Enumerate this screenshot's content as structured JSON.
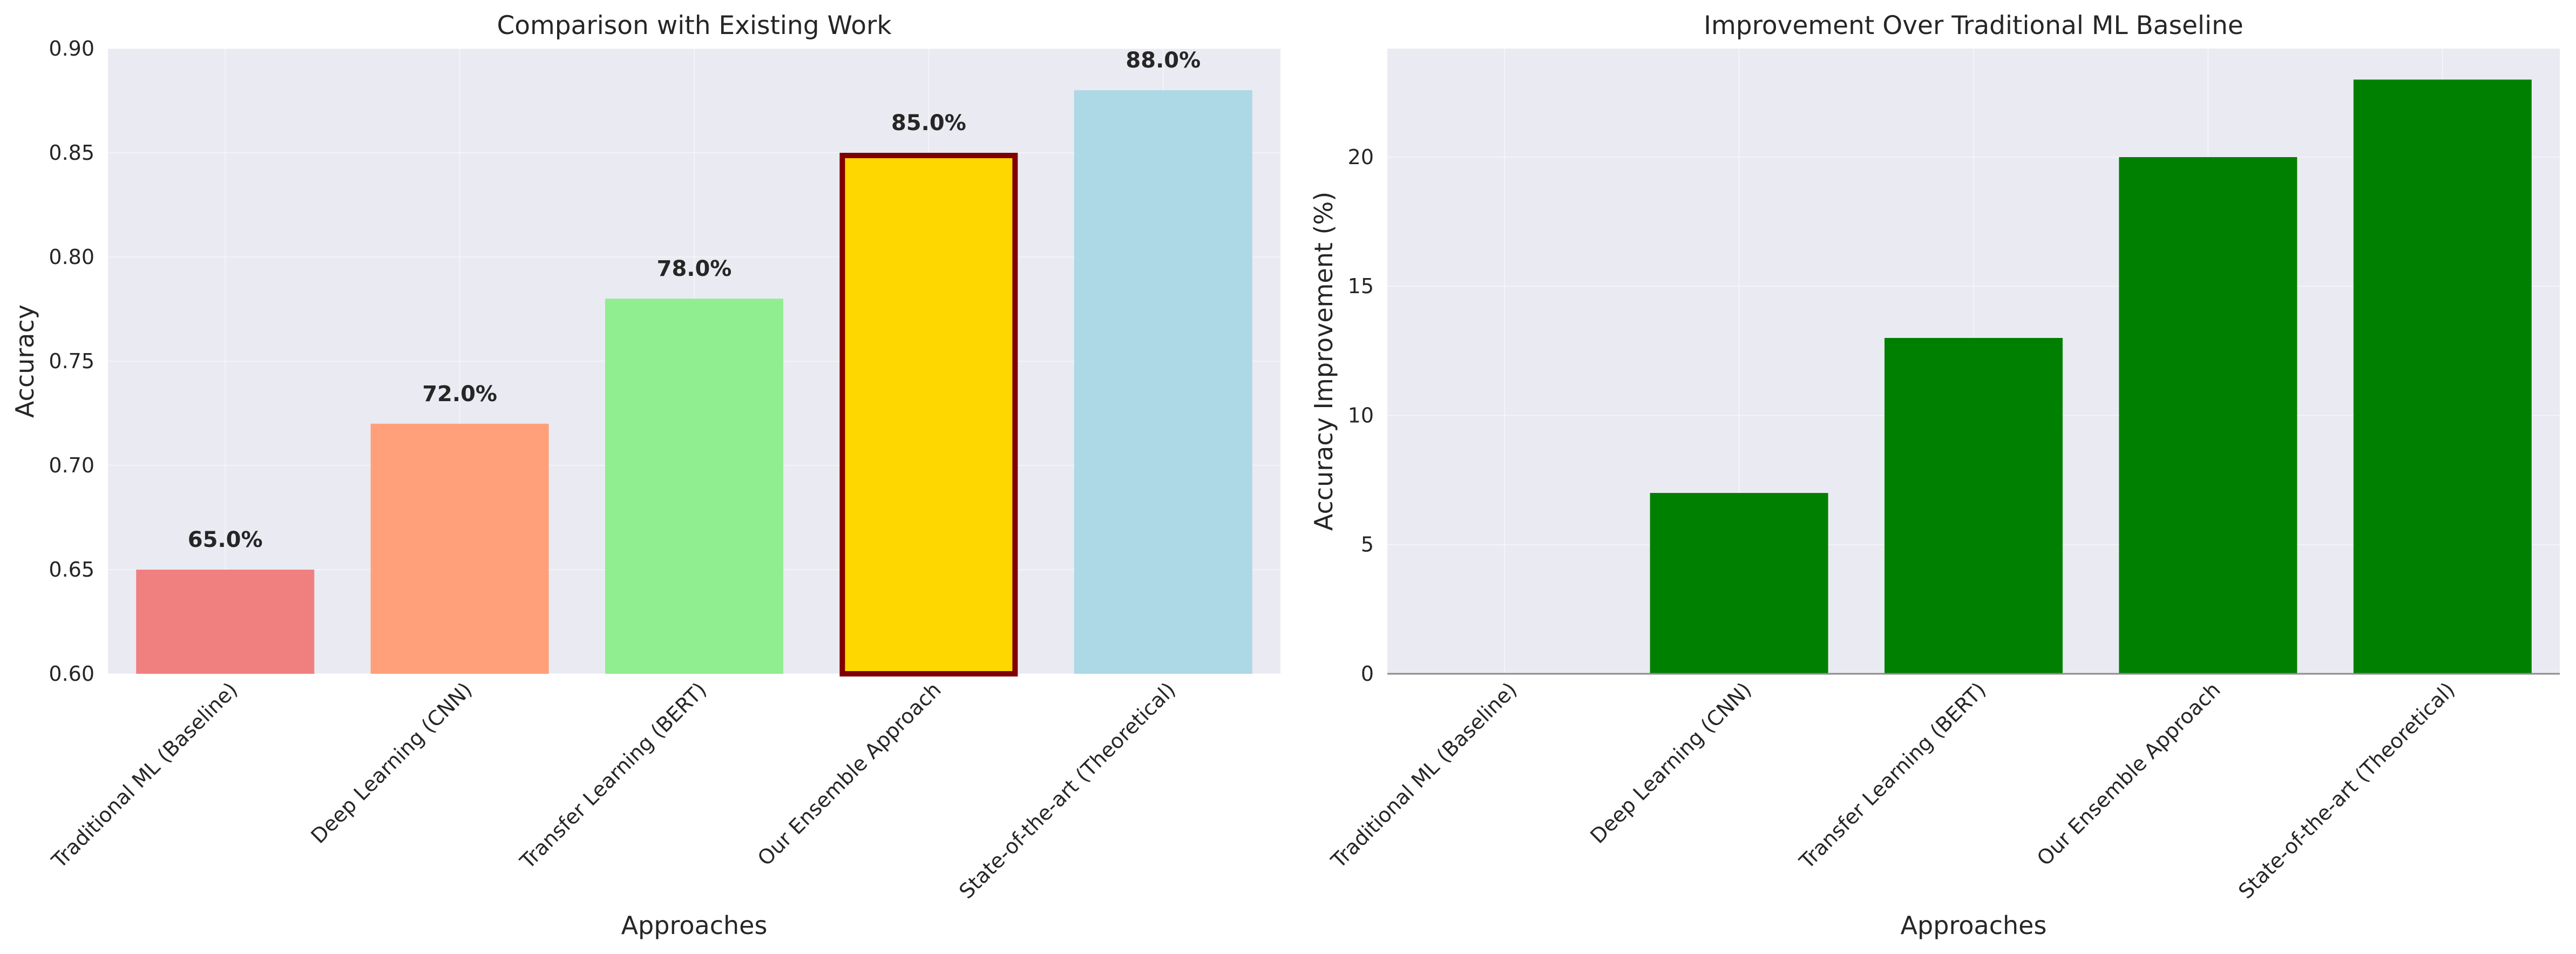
{
  "colors": {
    "plot_background": "#EAEAF2",
    "grid": "#FFFFFF",
    "tick_text": "#262626",
    "highlight_edge": "#7F0000",
    "zero_line": "#8C8C8C"
  },
  "chart_data": [
    {
      "type": "bar",
      "title": "Comparison with Existing Work",
      "xlabel": "Approaches",
      "ylabel": "Accuracy",
      "categories": [
        "Traditional ML (Baseline)",
        "Deep Learning (CNN)",
        "Transfer Learning (BERT)",
        "Our Ensemble Approach",
        "State-of-the-art (Theoretical)"
      ],
      "values": [
        0.65,
        0.72,
        0.78,
        0.85,
        0.88
      ],
      "data_labels": [
        "65.0%",
        "72.0%",
        "78.0%",
        "85.0%",
        "88.0%"
      ],
      "bar_colors": [
        "#F08080",
        "#FFA07A",
        "#90EE90",
        "#FFD700",
        "#ADD8E6"
      ],
      "highlight_index": 3,
      "ylim": [
        0.6,
        0.9
      ],
      "yticks": [
        0.6,
        0.65,
        0.7,
        0.75,
        0.8,
        0.85,
        0.9
      ],
      "ytick_labels": [
        "0.60",
        "0.65",
        "0.70",
        "0.75",
        "0.80",
        "0.85",
        "0.90"
      ],
      "grid": true
    },
    {
      "type": "bar",
      "title": "Improvement Over Traditional ML Baseline",
      "xlabel": "Approaches",
      "ylabel": "Accuracy Improvement (%)",
      "categories": [
        "Traditional ML (Baseline)",
        "Deep Learning (CNN)",
        "Transfer Learning (BERT)",
        "Our Ensemble Approach",
        "State-of-the-art (Theoretical)"
      ],
      "values": [
        0,
        7,
        13,
        20,
        23
      ],
      "bar_colors": [
        "#008000",
        "#008000",
        "#008000",
        "#008000",
        "#008000"
      ],
      "ylim": [
        0,
        24.2
      ],
      "yticks": [
        0,
        5,
        10,
        15,
        20
      ],
      "ytick_labels": [
        "0",
        "5",
        "10",
        "15",
        "20"
      ],
      "zero_line": true,
      "grid": true
    }
  ]
}
